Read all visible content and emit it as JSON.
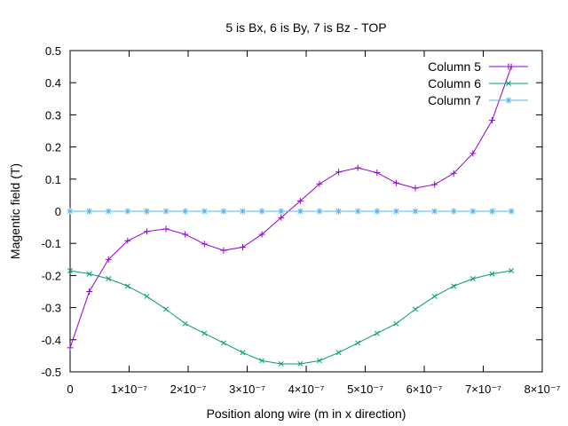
{
  "chart_data": {
    "type": "line",
    "title": "5 is Bx, 6 is By, 7 is Bz - TOP",
    "xlabel": "Position along wire (m in x direction)",
    "ylabel": "Magentic field (T)",
    "xlim": [
      0,
      8e-07
    ],
    "ylim": [
      -0.5,
      0.5
    ],
    "x_ticks": [
      0,
      1e-07,
      2e-07,
      3e-07,
      4e-07,
      5e-07,
      6e-07,
      7e-07,
      8e-07
    ],
    "x_tick_labels": [
      "0",
      "1×10⁻⁷",
      "2×10⁻⁷",
      "3×10⁻⁷",
      "4×10⁻⁷",
      "5×10⁻⁷",
      "6×10⁻⁷",
      "7×10⁻⁷",
      "8×10⁻⁷"
    ],
    "y_ticks": [
      -0.5,
      -0.4,
      -0.3,
      -0.2,
      -0.1,
      0,
      0.1,
      0.2,
      0.3,
      0.4,
      0.5
    ],
    "y_tick_labels": [
      "-0.5",
      "-0.4",
      "-0.3",
      "-0.2",
      "-0.1",
      "0",
      "0.1",
      "0.2",
      "0.3",
      "0.4",
      "0.5"
    ],
    "grid": false,
    "legend_position": "top-right",
    "x": [
      0,
      3.25e-08,
      6.5e-08,
      9.75e-08,
      1.3e-07,
      1.625e-07,
      1.95e-07,
      2.275e-07,
      2.6e-07,
      2.925e-07,
      3.25e-07,
      3.575e-07,
      3.9e-07,
      4.225e-07,
      4.55e-07,
      4.875e-07,
      5.2e-07,
      5.525e-07,
      5.85e-07,
      6.175e-07,
      6.5e-07,
      6.825e-07,
      7.15e-07,
      7.475e-07
    ],
    "series": [
      {
        "name": "Column 5",
        "color": "#9400d3",
        "marker": "plus",
        "values": [
          -0.425,
          -0.25,
          -0.15,
          -0.092,
          -0.063,
          -0.055,
          -0.072,
          -0.102,
          -0.122,
          -0.112,
          -0.072,
          -0.02,
          0.032,
          0.085,
          0.122,
          0.135,
          0.12,
          0.088,
          0.072,
          0.083,
          0.118,
          0.18,
          0.283,
          0.45
        ]
      },
      {
        "name": "Column 6",
        "color": "#009e73",
        "marker": "cross",
        "values": [
          -0.185,
          -0.195,
          -0.21,
          -0.233,
          -0.265,
          -0.305,
          -0.35,
          -0.38,
          -0.41,
          -0.44,
          -0.465,
          -0.475,
          -0.475,
          -0.465,
          -0.44,
          -0.41,
          -0.38,
          -0.35,
          -0.305,
          -0.265,
          -0.233,
          -0.21,
          -0.195,
          -0.185
        ]
      },
      {
        "name": "Column 7",
        "color": "#56b4e9",
        "marker": "star",
        "values": [
          0,
          0,
          0,
          0,
          0,
          0,
          0,
          0,
          0,
          0,
          0,
          0,
          0,
          0,
          0,
          0,
          0,
          0,
          0,
          0,
          0,
          0,
          0,
          0
        ]
      }
    ]
  }
}
